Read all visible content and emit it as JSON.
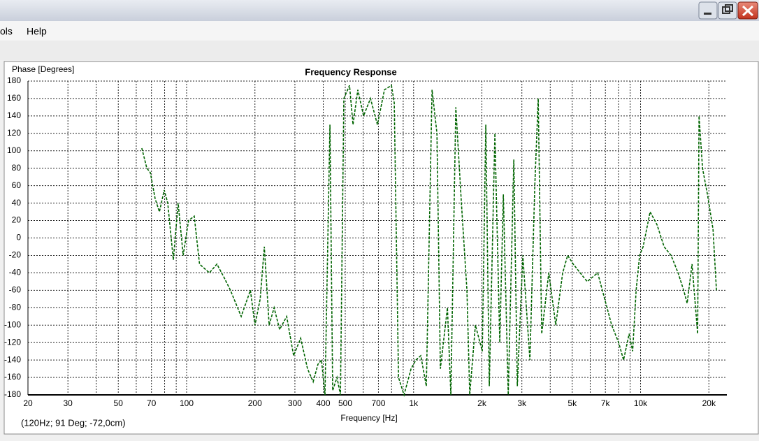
{
  "menu": [
    "ols",
    "Help"
  ],
  "status": "(120Hz; 91 Deg; -72,0cm)",
  "chart_data": {
    "type": "line",
    "title": "Frequency Response",
    "y_label": "Phase [Degrees]",
    "x_label": "Frequency [Hz]",
    "x_scale": "log",
    "grid": true,
    "xlim": [
      20,
      24000
    ],
    "ylim": [
      -180,
      180
    ],
    "xticks": [
      20,
      30,
      50,
      70,
      100,
      200,
      300,
      400,
      500,
      700,
      {
        "value": 1000,
        "label": "1k"
      },
      {
        "value": 2000,
        "label": "2k"
      },
      {
        "value": 3000,
        "label": "3k"
      },
      {
        "value": 5000,
        "label": "5k"
      },
      {
        "value": 7000,
        "label": "7k"
      },
      {
        "value": 10000,
        "label": "10k"
      },
      {
        "value": 20000,
        "label": "20k"
      }
    ],
    "x_minor_grid": [
      40,
      60,
      80,
      90,
      600,
      800,
      900,
      4000,
      6000,
      8000,
      9000
    ],
    "yticks": [
      -180,
      -160,
      -140,
      -120,
      -100,
      -80,
      -60,
      -40,
      -20,
      0,
      20,
      40,
      60,
      80,
      100,
      120,
      140,
      160,
      180
    ],
    "series": [
      {
        "name": "Phase",
        "color": "#006400",
        "x": [
          63.5,
          66.8,
          69.2,
          72.7,
          75.9,
          79.7,
          82.6,
          87.4,
          91.8,
          96.6,
          102,
          108,
          114,
          126,
          136,
          146,
          156,
          174,
          191,
          200,
          211,
          220,
          231,
          243,
          257,
          276,
          296,
          318,
          341,
          361,
          379,
          393,
          407,
          428,
          440,
          460,
          476,
          493,
          522,
          541,
          568,
          602,
          646,
          693,
          744,
          799,
          822,
          858,
          908,
          975,
          1024,
          1076,
          1138,
          1206,
          1268,
          1312,
          1410,
          1460,
          1535,
          1624,
          1718,
          1768,
          1872,
          2008,
          2080,
          2156,
          2282,
          2398,
          2486,
          2612,
          2764,
          2864,
          3030,
          3254,
          3420,
          3542,
          3670,
          3940,
          4230,
          4540,
          4772,
          5050,
          5420,
          5820,
          6472,
          6948,
          7458,
          8008,
          8414,
          8908,
          9228,
          9562,
          9906,
          10264,
          11016,
          11828,
          12698,
          13632,
          14634,
          15486,
          16044,
          16862,
          17846,
          18104,
          18758,
          19704,
          20860,
          21600
        ],
        "values": [
          103,
          80,
          75,
          45,
          30,
          55,
          40,
          -25,
          40,
          -20,
          20,
          25,
          -30,
          -40,
          -30,
          -45,
          -60,
          -90,
          -60,
          -100,
          -70,
          -10,
          -100,
          -80,
          -105,
          -90,
          -135,
          -115,
          -150,
          -165,
          -145,
          -140,
          -180,
          130,
          -175,
          -160,
          -180,
          160,
          175,
          130,
          170,
          140,
          160,
          130,
          170,
          175,
          155,
          -160,
          -180,
          -150,
          -140,
          -135,
          -170,
          170,
          120,
          -150,
          -80,
          -180,
          150,
          40,
          -60,
          -180,
          -100,
          -130,
          130,
          -170,
          120,
          -120,
          50,
          -180,
          90,
          -170,
          -20,
          -140,
          60,
          160,
          -110,
          -40,
          -100,
          -40,
          -20,
          -30,
          -40,
          -50,
          -40,
          -70,
          -100,
          -120,
          -140,
          -110,
          -130,
          -60,
          -20,
          -10,
          30,
          15,
          -10,
          -20,
          -40,
          -60,
          -75,
          -30,
          -110,
          140,
          80,
          50,
          10,
          -60
        ]
      }
    ]
  }
}
